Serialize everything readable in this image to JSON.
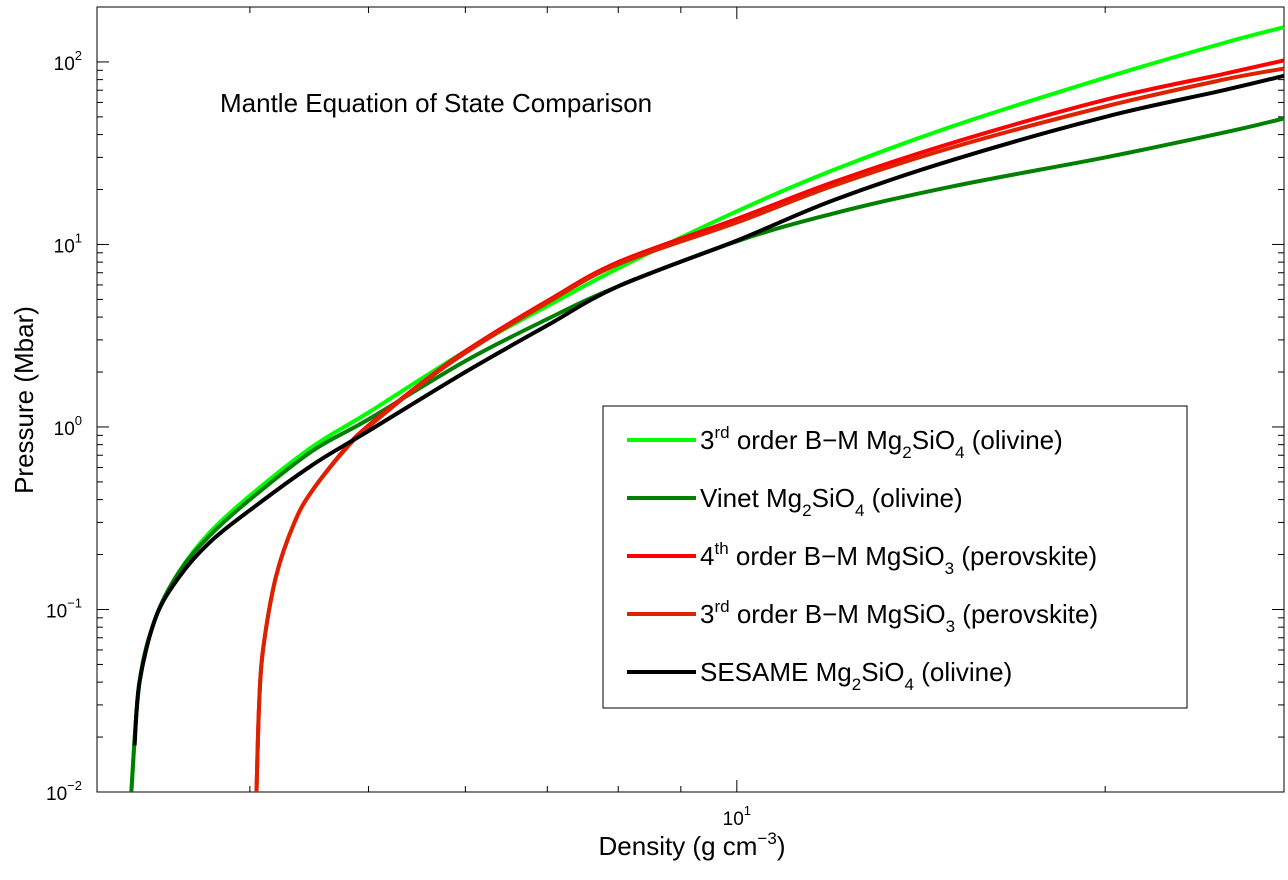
{
  "chart_data": {
    "type": "line",
    "title": "Mantle Equation of State Comparison",
    "xlabel": {
      "base": "Density (g cm",
      "sup": "−3",
      "close": ")"
    },
    "ylabel": "Pressure (Mbar)",
    "xscale": "log",
    "yscale": "log",
    "xlim": [
      3.0,
      28.0
    ],
    "ylim": [
      0.01,
      200
    ],
    "x_ticks": [
      {
        "value": 10,
        "base": "10",
        "exp": "1"
      }
    ],
    "y_ticks": [
      {
        "value": 0.01,
        "base": "10",
        "exp": "−2"
      },
      {
        "value": 0.1,
        "base": "10",
        "exp": "−1"
      },
      {
        "value": 1,
        "base": "10",
        "exp": "0"
      },
      {
        "value": 10,
        "base": "10",
        "exp": "1"
      },
      {
        "value": 100,
        "base": "10",
        "exp": "2"
      }
    ],
    "grid": false,
    "legend_position": "center-right",
    "series": [
      {
        "legend": [
          [
            "3",
            ""
          ],
          [
            "rd",
            "sup"
          ],
          [
            " order B−M Mg",
            ""
          ],
          [
            "2",
            "sub"
          ],
          [
            "SiO",
            ""
          ],
          [
            "4",
            "sub"
          ],
          [
            " (olivine)",
            ""
          ]
        ],
        "color": "#00ff00",
        "x": [
          3.2,
          3.25,
          3.35,
          3.5,
          3.7,
          4.0,
          4.5,
          5.0,
          6.0,
          7.0,
          8.0,
          10.0,
          12.0,
          15.0,
          20.0,
          25.0,
          28.0
        ],
        "y": [
          0.01,
          0.04,
          0.09,
          0.16,
          0.26,
          0.42,
          0.78,
          1.2,
          2.6,
          4.6,
          7.4,
          15.2,
          25.6,
          44.4,
          82,
          127,
          155
        ]
      },
      {
        "legend": [
          [
            "Vinet Mg",
            ""
          ],
          [
            "2",
            "sub"
          ],
          [
            "SiO",
            ""
          ],
          [
            "4",
            "sub"
          ],
          [
            " (olivine)",
            ""
          ]
        ],
        "color": "#008000",
        "x": [
          3.2,
          3.25,
          3.35,
          3.5,
          3.7,
          4.0,
          4.5,
          5.0,
          6.0,
          7.0,
          8.0,
          10.0,
          12.0,
          15.0,
          20.0,
          25.0,
          28.0
        ],
        "y": [
          0.01,
          0.04,
          0.09,
          0.16,
          0.25,
          0.4,
          0.74,
          1.1,
          2.3,
          3.9,
          5.9,
          10.4,
          14.8,
          20.8,
          30,
          41,
          49
        ]
      },
      {
        "legend": [
          [
            "4",
            ""
          ],
          [
            "th",
            "sup"
          ],
          [
            " order B−M MgSiO",
            ""
          ],
          [
            "3",
            "sub"
          ],
          [
            " (perovskite)",
            ""
          ]
        ],
        "color": "#ff0000",
        "x": [
          4.05,
          4.07,
          4.1,
          4.2,
          4.35,
          4.5,
          4.8,
          5.0,
          5.5,
          6.0,
          7.0,
          8.0,
          10.0,
          12.0,
          15.0,
          20.0,
          25.0,
          28.0
        ],
        "y": [
          0.01,
          0.03,
          0.06,
          0.15,
          0.3,
          0.45,
          0.78,
          1.02,
          1.7,
          2.6,
          4.9,
          8.0,
          13.8,
          22.0,
          36,
          62,
          86,
          102
        ]
      },
      {
        "legend": [
          [
            "3",
            ""
          ],
          [
            "rd",
            "sup"
          ],
          [
            " order B−M MgSiO",
            ""
          ],
          [
            "3",
            "sub"
          ],
          [
            " (perovskite)",
            ""
          ]
        ],
        "color": "#dd2200",
        "x": [
          4.05,
          4.07,
          4.1,
          4.2,
          4.35,
          4.5,
          4.8,
          5.0,
          5.5,
          6.0,
          7.0,
          8.0,
          10.0,
          12.0,
          15.0,
          20.0,
          25.0,
          28.0
        ],
        "y": [
          0.01,
          0.03,
          0.06,
          0.15,
          0.3,
          0.45,
          0.77,
          1.0,
          1.68,
          2.55,
          4.8,
          7.8,
          13.2,
          21.0,
          34,
          57,
          80,
          92
        ]
      },
      {
        "legend": [
          [
            "SESAME Mg",
            ""
          ],
          [
            "2",
            "sub"
          ],
          [
            "SiO",
            ""
          ],
          [
            "4",
            "sub"
          ],
          [
            " (olivine)",
            ""
          ]
        ],
        "color": "#000000",
        "x": [
          3.22,
          3.25,
          3.35,
          3.5,
          3.7,
          4.0,
          4.5,
          5.0,
          6.0,
          7.0,
          8.0,
          10.0,
          12.0,
          15.0,
          20.0,
          25.0,
          28.0
        ],
        "y": [
          0.018,
          0.04,
          0.09,
          0.15,
          0.23,
          0.35,
          0.62,
          0.95,
          2.0,
          3.6,
          5.9,
          10.5,
          17.5,
          29,
          50,
          70,
          84
        ]
      }
    ]
  }
}
